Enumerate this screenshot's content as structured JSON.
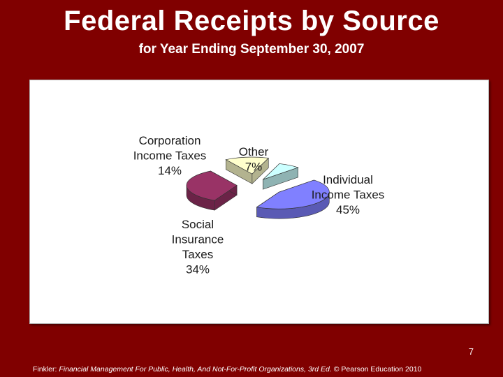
{
  "slide": {
    "title": "Federal Receipts by Source",
    "subtitle": "for Year Ending September 30, 2007",
    "number": "7",
    "footer": {
      "author": "Finkler:",
      "book": "Financial Management For Public, Health, And Not-For-Profit Organizations,",
      "edition": "3rd Ed.",
      "copyright": "© Pearson Education 2010"
    }
  },
  "colors": {
    "background": "#800000",
    "panel": "#ffffff"
  },
  "chart_data": {
    "type": "pie",
    "style": "exploded-3d",
    "slices": [
      {
        "label_lines": [
          "Individual",
          "Income Taxes",
          "45%"
        ],
        "value": 45,
        "color": "#8080ff",
        "side": "#5a5ab4"
      },
      {
        "label_lines": [
          "Social",
          "Insurance",
          "Taxes",
          "34%"
        ],
        "value": 34,
        "color": "#993366",
        "side": "#6b2347"
      },
      {
        "label_lines": [
          "Corporation",
          "Income Taxes",
          "14%"
        ],
        "value": 14,
        "color": "#ffffcc",
        "side": "#b3b38f"
      },
      {
        "label_lines": [
          "Other",
          "7%"
        ],
        "value": 7,
        "color": "#ccffff",
        "side": "#8fb3b3"
      }
    ]
  }
}
